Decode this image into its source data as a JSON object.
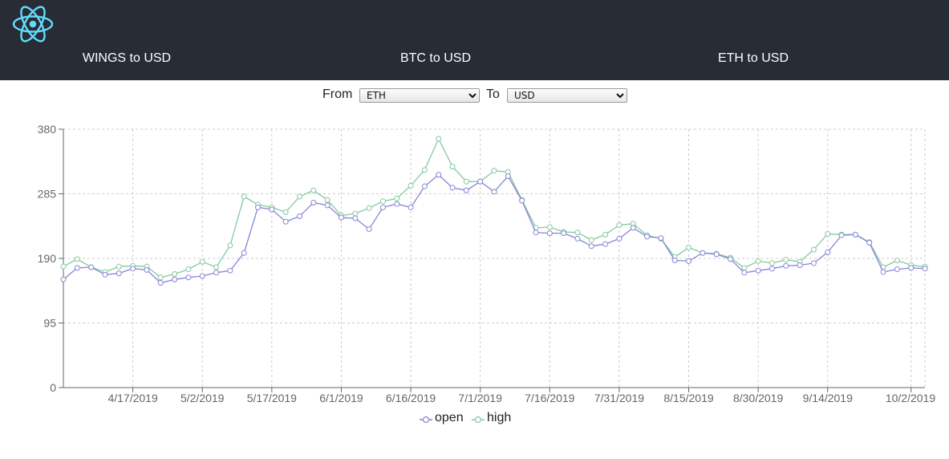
{
  "header": {
    "logo_icon": "react-atom-icon",
    "nav": [
      {
        "label": "WINGS to USD"
      },
      {
        "label": "BTC to USD"
      },
      {
        "label": "ETH to USD"
      }
    ]
  },
  "selector": {
    "from_label": "From",
    "from_value": "ETH",
    "to_label": "To",
    "to_value": "USD"
  },
  "colors": {
    "header_bg": "#282c34",
    "open": "#8884d8",
    "high": "#82ca9d"
  },
  "chart_data": {
    "type": "line",
    "title": "",
    "xlabel": "",
    "ylabel": "",
    "ylim": [
      0,
      380
    ],
    "yticks": [
      0,
      95,
      190,
      285,
      380
    ],
    "x_start": "4/2/2019",
    "x_step_days": 3,
    "xticks": [
      "4/17/2019",
      "5/2/2019",
      "5/17/2019",
      "6/1/2019",
      "6/16/2019",
      "7/1/2019",
      "7/16/2019",
      "7/31/2019",
      "8/15/2019",
      "8/30/2019",
      "9/14/2019",
      "10/2/2019"
    ],
    "grid": true,
    "legend": "bottom-center",
    "series": [
      {
        "name": "open",
        "values": [
          159,
          176,
          177,
          166,
          168,
          175,
          173,
          154,
          159,
          162,
          164,
          169,
          172,
          198,
          265,
          262,
          244,
          252,
          272,
          268,
          250,
          249,
          233,
          265,
          270,
          265,
          296,
          313,
          294,
          290,
          303,
          288,
          311,
          275,
          228,
          227,
          227,
          219,
          208,
          211,
          219,
          235,
          222,
          220,
          187,
          186,
          198,
          196,
          189,
          169,
          172,
          175,
          179,
          180,
          183,
          199,
          224,
          225,
          213,
          170,
          174,
          176,
          175
        ]
      },
      {
        "name": "high",
        "values": [
          178,
          189,
          177,
          170,
          178,
          179,
          178,
          162,
          167,
          174,
          185,
          177,
          209,
          281,
          269,
          265,
          258,
          281,
          290,
          276,
          253,
          256,
          264,
          274,
          278,
          297,
          320,
          366,
          325,
          303,
          303,
          319,
          317,
          276,
          235,
          236,
          229,
          228,
          217,
          225,
          239,
          241,
          224,
          219,
          192,
          206,
          198,
          197,
          191,
          176,
          186,
          183,
          188,
          185,
          203,
          226,
          225,
          225,
          214,
          177,
          187,
          180,
          178
        ]
      }
    ]
  }
}
